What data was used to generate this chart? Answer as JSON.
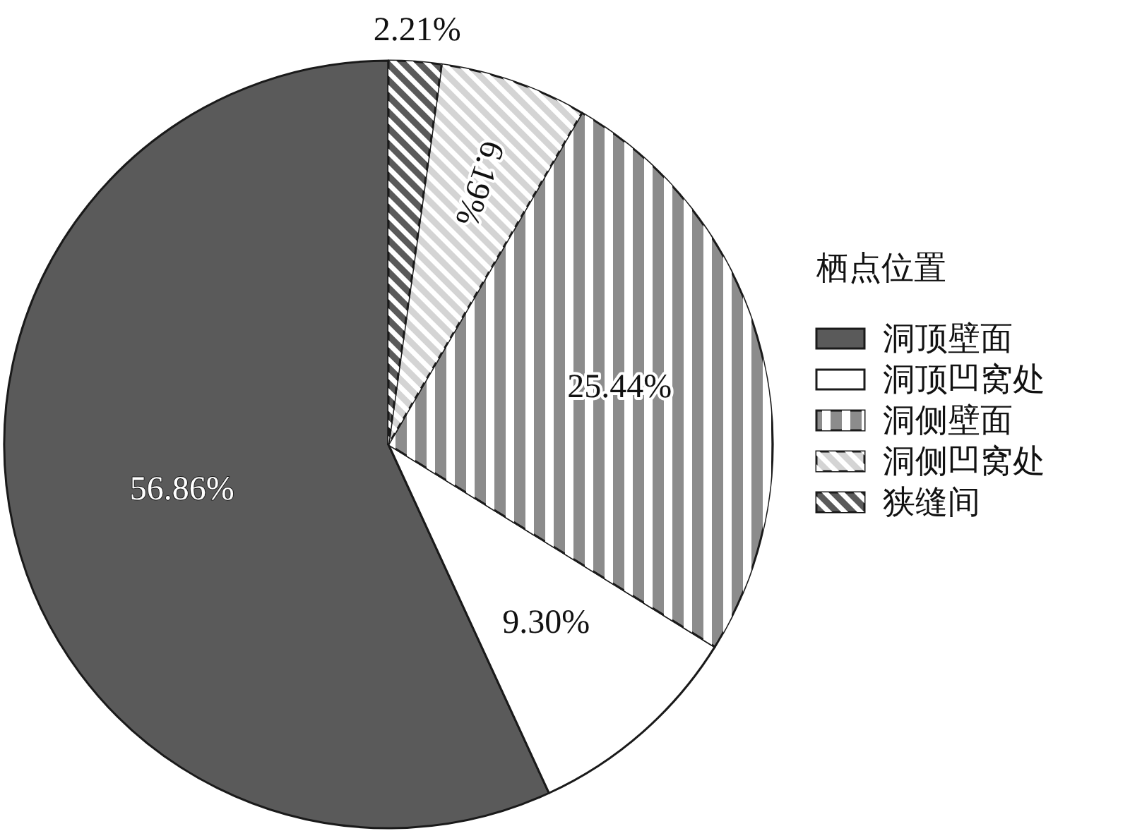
{
  "chart_data": {
    "type": "pie",
    "legend_title": "栖点位置",
    "legend": "right",
    "categories": [
      "洞顶壁面",
      "洞顶凹窝处",
      "洞侧壁面",
      "洞侧凹窝处",
      "狭缝间"
    ],
    "values": [
      56.86,
      9.3,
      25.44,
      6.19,
      2.21
    ],
    "value_labels": [
      "56.86%",
      "9.30%",
      "25.44%",
      "6.19%",
      "2.21%"
    ],
    "colors": [
      "#5a5a5a",
      "#ffffff",
      "#8c8c8c",
      "#d4d4d4",
      "#5a5a5a"
    ]
  }
}
